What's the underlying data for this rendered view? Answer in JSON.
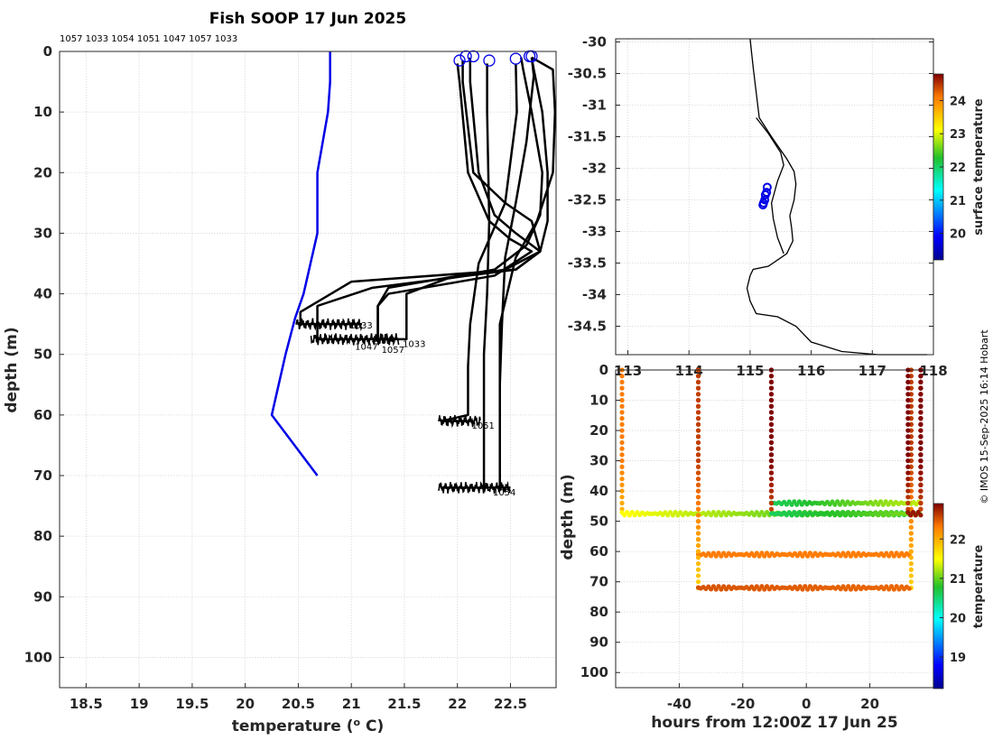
{
  "chart_data": [
    {
      "type": "line",
      "name": "depth-profiles",
      "title": "Fish SOOP 17 Jun 2025",
      "xlabel": "temperature (° C)",
      "ylabel": "depth (m)",
      "xlim": [
        18.25,
        22.93
      ],
      "ylim": [
        0,
        105
      ],
      "xticks": [
        "18.5",
        "19",
        "19.5",
        "20",
        "20.5",
        "21",
        "21.5",
        "22",
        "22.5"
      ],
      "xtick_values": [
        18.5,
        19,
        19.5,
        20,
        20.5,
        21,
        21.5,
        22,
        22.5
      ],
      "yticks": [
        "0",
        "10",
        "20",
        "30",
        "40",
        "50",
        "60",
        "70",
        "80",
        "90",
        "100"
      ],
      "ytick_values": [
        0,
        10,
        20,
        30,
        40,
        50,
        60,
        70,
        80,
        90,
        100
      ],
      "top_labels": [
        "1057",
        "1033",
        "1054",
        "1051",
        "1047",
        "1057",
        "1033"
      ],
      "climatology": {
        "color": "#0000e6",
        "temps": [
          20.8,
          20.8,
          20.78,
          20.68,
          20.68,
          20.55,
          20.47,
          20.38,
          20.25,
          20.68
        ],
        "depths": [
          0,
          5,
          10,
          20,
          30,
          40,
          44,
          50,
          60,
          70
        ]
      },
      "profiles": [
        {
          "id": "1047",
          "temps": [
            22.05,
            22.05,
            22.15,
            22.45,
            22.7,
            22.78,
            22.55,
            21.0,
            20.52,
            20.52,
            21.1
          ],
          "depths": [
            1.5,
            5,
            20,
            25,
            28,
            33,
            36,
            38,
            43,
            45,
            45
          ]
        },
        {
          "id": "1033a",
          "temps": [
            22.12,
            22.12,
            22.2,
            22.35,
            22.55,
            22.78,
            22.55,
            21.2,
            20.68,
            20.68,
            21.4
          ],
          "depths": [
            1,
            5,
            20,
            27,
            30,
            33,
            36,
            39,
            42,
            47.5,
            47.5
          ]
        },
        {
          "id": "1057a",
          "temps": [
            22.0,
            22.02,
            22.1,
            22.3,
            22.5,
            22.7,
            22.35,
            21.35,
            21.25,
            21.25,
            21.4
          ],
          "depths": [
            2,
            5,
            20,
            28,
            31,
            33,
            37,
            40,
            42,
            47.5,
            47.5
          ]
        },
        {
          "id": "1051",
          "temps": [
            22.55,
            22.56,
            22.45,
            22.2,
            22.12,
            22.1,
            22.1,
            22.1,
            21.85,
            22.15
          ],
          "depths": [
            2,
            10,
            25,
            35,
            45,
            52,
            56,
            60,
            61,
            61
          ]
        },
        {
          "id": "1054",
          "temps": [
            22.28,
            22.28,
            22.3,
            22.28,
            22.25,
            22.25,
            22.25,
            22.25,
            21.85,
            22.5
          ],
          "depths": [
            2,
            10,
            28,
            40,
            50,
            60,
            69,
            72,
            72,
            72
          ]
        },
        {
          "id": "1057b",
          "temps": [
            22.7,
            22.72,
            22.8,
            22.85,
            22.85,
            22.78,
            22.45,
            21.9,
            21.52,
            21.52,
            21.35
          ],
          "depths": [
            1,
            3,
            10,
            20,
            28,
            33,
            36,
            37.5,
            40,
            47.5,
            47.5
          ]
        },
        {
          "id": "1033b",
          "temps": [
            22.6,
            22.62,
            22.7,
            22.8,
            22.78,
            22.65,
            22.35,
            21.35,
            21.25,
            21.25,
            21.35
          ],
          "depths": [
            1,
            3,
            10,
            20,
            27,
            32,
            36,
            39,
            42,
            47.5,
            47.5
          ]
        },
        {
          "id": "1054b",
          "temps": [
            22.7,
            22.72,
            22.65,
            22.55,
            22.45,
            22.42,
            22.4,
            22.4,
            22.4
          ],
          "depths": [
            1,
            4,
            15,
            25,
            34,
            45,
            55,
            65,
            72
          ]
        },
        {
          "id": "1051b",
          "temps": [
            22.7,
            22.9,
            22.92,
            22.9,
            22.75,
            22.55,
            22.4,
            22.4
          ],
          "depths": [
            1,
            3,
            10,
            20,
            28,
            34,
            45,
            55
          ]
        }
      ],
      "end_labels": [
        {
          "text": "1033",
          "temp": 20.95,
          "depth": 45
        },
        {
          "text": "1033",
          "temp": 21.45,
          "depth": 48
        },
        {
          "text": "1057",
          "temp": 21.25,
          "depth": 49
        },
        {
          "text": "1047",
          "temp": 21.0,
          "depth": 48.5
        },
        {
          "text": "1051",
          "temp": 22.1,
          "depth": 61.5
        },
        {
          "text": "1054",
          "temp": 22.3,
          "depth": 72.5
        }
      ],
      "surface_markers": [
        {
          "temp": 22.02,
          "depth": 1.5
        },
        {
          "temp": 22.08,
          "depth": 0.8
        },
        {
          "temp": 22.15,
          "depth": 0.8
        },
        {
          "temp": 22.3,
          "depth": 1.5
        },
        {
          "temp": 22.55,
          "depth": 1.2
        },
        {
          "temp": 22.68,
          "depth": 0.8
        },
        {
          "temp": 22.7,
          "depth": 0.8
        }
      ]
    },
    {
      "type": "scatter",
      "name": "map",
      "xlim": [
        112.8,
        118.0
      ],
      "ylim": [
        -34.95,
        -29.95
      ],
      "yticks": [
        "-30",
        "-30.5",
        "-31",
        "-31.5",
        "-32",
        "-32.5",
        "-33",
        "-33.5",
        "-34",
        "-34.5"
      ],
      "ytick_values": [
        -30,
        -30.5,
        -31,
        -31.5,
        -32,
        -32.5,
        -33,
        -33.5,
        -34,
        -34.5
      ],
      "xticks": [
        "113",
        "114",
        "115",
        "116",
        "117",
        "118"
      ],
      "xtick_values": [
        113,
        114,
        115,
        116,
        117,
        118
      ],
      "colorbar": {
        "label": "surface temperature",
        "ticks": [
          "20",
          "21",
          "22",
          "23",
          "24"
        ],
        "tick_values": [
          20,
          21,
          22,
          23,
          24
        ],
        "range": [
          19.2,
          24.8
        ]
      },
      "stations": [
        {
          "lon": 115.28,
          "lat": -32.3
        },
        {
          "lon": 115.27,
          "lat": -32.38
        },
        {
          "lon": 115.25,
          "lat": -32.42
        },
        {
          "lon": 115.24,
          "lat": -32.5
        },
        {
          "lon": 115.22,
          "lat": -32.55
        },
        {
          "lon": 115.21,
          "lat": -32.58
        }
      ],
      "coast": [
        [
          115.0,
          -29.95
        ],
        [
          115.05,
          -30.4
        ],
        [
          115.1,
          -30.8
        ],
        [
          115.15,
          -31.2
        ],
        [
          115.35,
          -31.5
        ],
        [
          115.6,
          -31.85
        ],
        [
          115.72,
          -32.05
        ],
        [
          115.75,
          -32.25
        ],
        [
          115.72,
          -32.5
        ],
        [
          115.65,
          -32.75
        ],
        [
          115.68,
          -32.95
        ],
        [
          115.7,
          -33.15
        ],
        [
          115.6,
          -33.35
        ],
        [
          115.3,
          -33.55
        ],
        [
          115.05,
          -33.6
        ],
        [
          115.0,
          -33.7
        ],
        [
          114.95,
          -33.9
        ],
        [
          115.0,
          -34.1
        ],
        [
          115.1,
          -34.3
        ],
        [
          115.45,
          -34.35
        ],
        [
          115.75,
          -34.5
        ],
        [
          116.0,
          -34.75
        ],
        [
          116.5,
          -34.9
        ],
        [
          117.1,
          -34.95
        ],
        [
          117.9,
          -34.95
        ]
      ],
      "coast2": [
        [
          115.55,
          -33.35
        ],
        [
          115.45,
          -33.1
        ],
        [
          115.38,
          -32.8
        ],
        [
          115.35,
          -32.55
        ],
        [
          115.45,
          -32.2
        ],
        [
          115.55,
          -31.95
        ],
        [
          115.5,
          -31.75
        ],
        [
          115.3,
          -31.45
        ],
        [
          115.1,
          -31.2
        ]
      ]
    },
    {
      "type": "scatter",
      "name": "time-depth",
      "xlabel": "hours from 12:00Z 17 Jun 25",
      "ylabel": "depth (m)",
      "xlim": [
        -60,
        40
      ],
      "ylim": [
        0,
        105
      ],
      "xticks": [
        "-40",
        "-20",
        "0",
        "20"
      ],
      "xtick_values": [
        -40,
        -20,
        0,
        20
      ],
      "yticks": [
        "0",
        "10",
        "20",
        "30",
        "40",
        "50",
        "60",
        "70",
        "80",
        "90",
        "100"
      ],
      "ytick_values": [
        0,
        10,
        20,
        30,
        40,
        50,
        60,
        70,
        80,
        90,
        100
      ],
      "colorbar": {
        "label": "temperature",
        "ticks": [
          "19",
          "20",
          "21",
          "22"
        ],
        "tick_values": [
          19,
          20,
          21,
          22
        ],
        "range": [
          18.2,
          22.9
        ]
      },
      "tows": [
        {
          "x0": -58,
          "x1": 36,
          "depth": 47.5,
          "temp_start": 21.5,
          "temp_end": 20.6,
          "drop_temp": 22.3
        },
        {
          "x0": -34,
          "x1": 33,
          "depth": 61,
          "temp_start": 22.3,
          "temp_end": 22.3,
          "drop_temp": 22.5
        },
        {
          "x0": -34,
          "x1": 33,
          "depth": 72,
          "temp_start": 22.5,
          "temp_end": 22.4,
          "drop_temp": 22.6
        },
        {
          "x0": -11,
          "x1": 36,
          "depth": 44,
          "temp_start": 20.6,
          "temp_end": 21.3,
          "drop_temp": 22.9
        },
        {
          "x0": -11,
          "x1": 36,
          "depth": 47.5,
          "temp_start": 20.6,
          "temp_end": 21.1,
          "drop_temp": 22.9
        },
        {
          "x0": 32,
          "x1": 36,
          "depth": 47.5,
          "temp_start": 22.8,
          "temp_end": 22.8,
          "drop_temp": 22.9
        }
      ]
    }
  ],
  "watermark": "© IMOS 15-Sep-2025 16:14 Hobart"
}
